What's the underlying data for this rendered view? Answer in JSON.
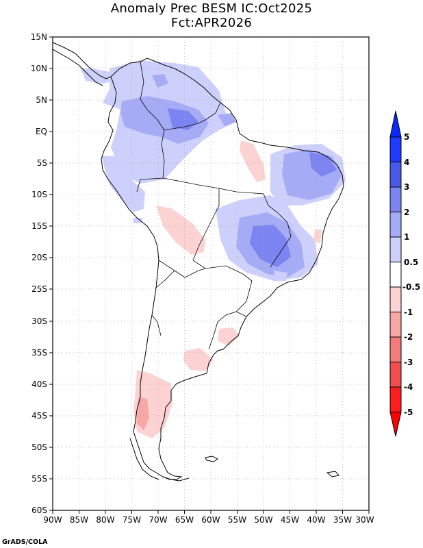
{
  "header": {
    "title_line1": "Anomaly Prec BESM IC:Oct2025",
    "title_line2": "Fct:APR2026"
  },
  "map": {
    "region": "South America",
    "variable": "Precipitation anomaly",
    "lon_range": [
      -90,
      -30
    ],
    "lat_range": [
      -60,
      15
    ],
    "lat_labels": [
      "15N",
      "10N",
      "5N",
      "EQ",
      "5S",
      "10S",
      "15S",
      "20S",
      "25S",
      "30S",
      "35S",
      "40S",
      "45S",
      "50S",
      "55S",
      "60S"
    ],
    "lon_labels": [
      "90W",
      "85W",
      "80W",
      "75W",
      "70W",
      "65W",
      "60W",
      "55W",
      "50W",
      "45W",
      "40W",
      "35W",
      "30W"
    ]
  },
  "colorbar": {
    "labels": [
      "5",
      "4",
      "3",
      "2",
      "1",
      "0.5",
      "-0.5",
      "-1",
      "-2",
      "-3",
      "-4",
      "-5"
    ],
    "colors": [
      "#1e3cff",
      "#4a5ae8",
      "#7b84f0",
      "#a5abf5",
      "#cdd0fa",
      "#ffffff",
      "#fcd2d2",
      "#f8a7a7",
      "#f47b7b",
      "#f04e4e",
      "#ff1e1e"
    ],
    "top_arrow_color": "#0a28ff",
    "bottom_arrow_color": "#ff0000"
  },
  "footer": {
    "credit": "GrADS/COLA"
  }
}
